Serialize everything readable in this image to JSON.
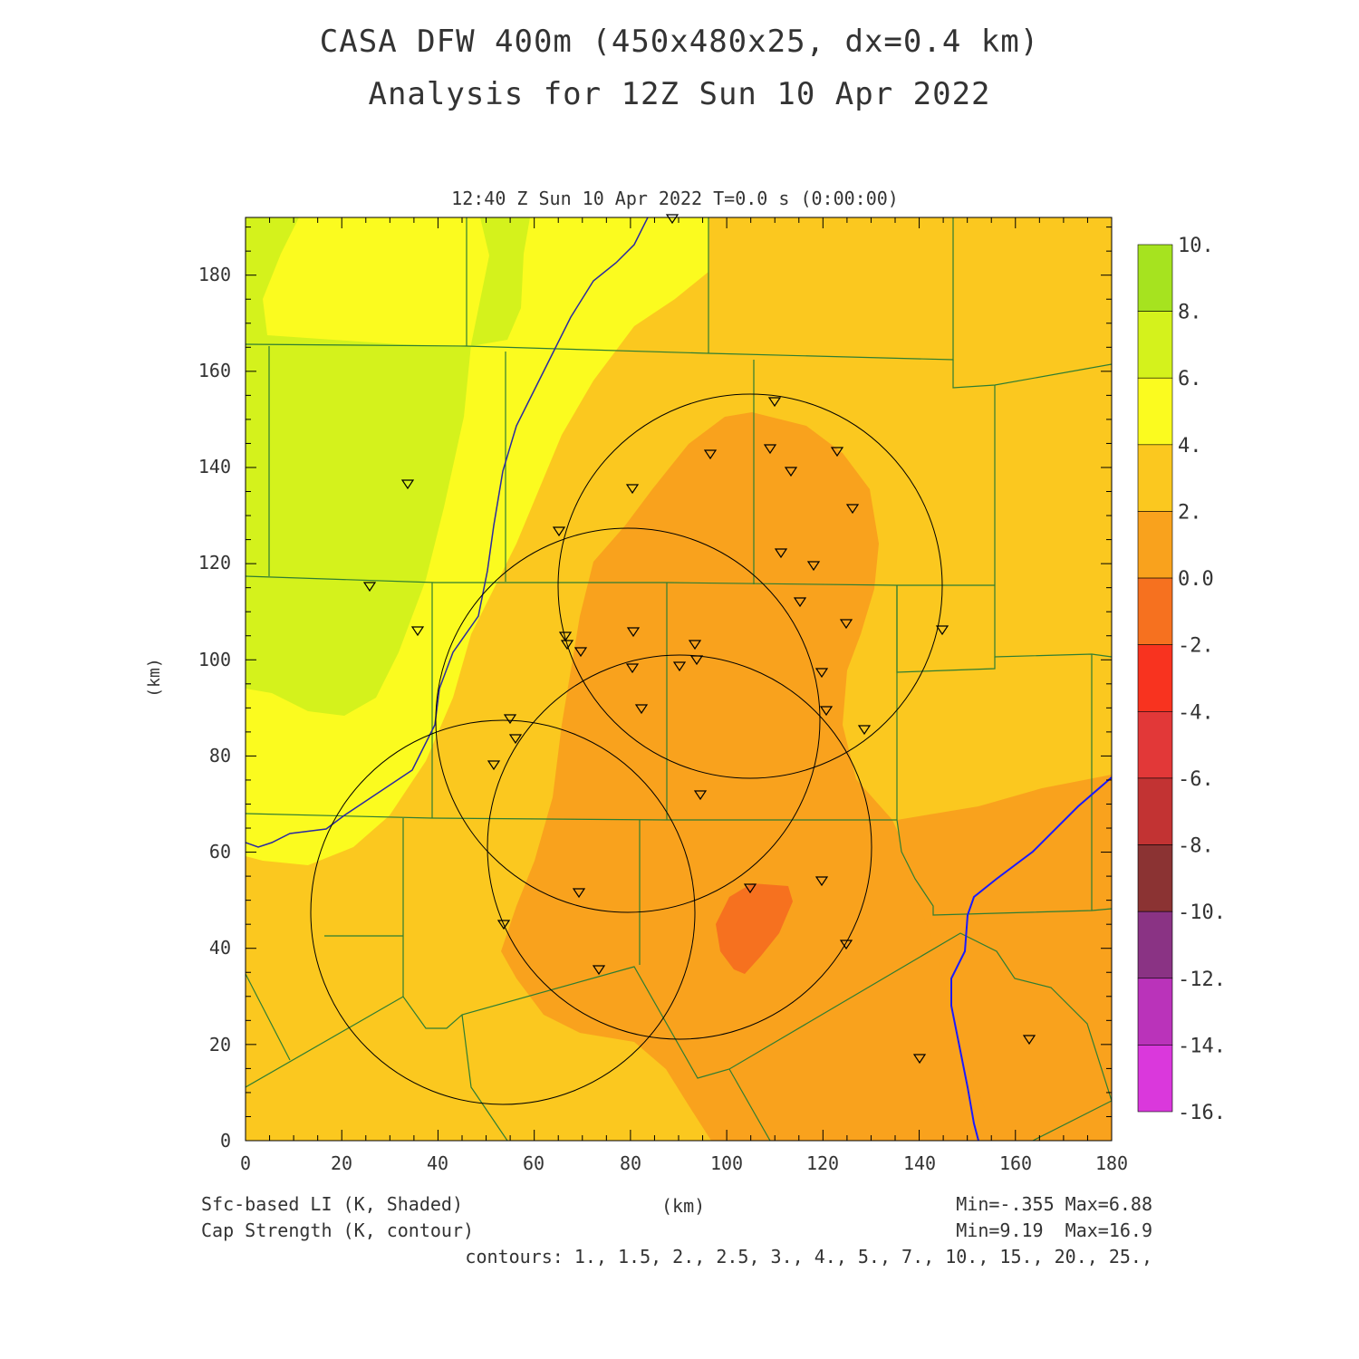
{
  "title_line1": "CASA DFW 400m (450x480x25, dx=0.4 km)",
  "title_line2": "Analysis for 12Z Sun 10 Apr 2022",
  "valid_time": "12:40 Z Sun 10 Apr 2022   T=0.0 s (0:00:00)",
  "axis_x_label": "(km)",
  "axis_y_label": "(km)",
  "x_ticks": [
    "0",
    "20",
    "40",
    "60",
    "80",
    "100",
    "120",
    "140",
    "160",
    "180"
  ],
  "y_ticks": [
    "0",
    "20",
    "40",
    "60",
    "80",
    "100",
    "120",
    "140",
    "160",
    "180"
  ],
  "field1_label": "Sfc-based LI (K, Shaded)",
  "field1_range": "Min=-.355 Max=6.88",
  "field2_label": "Cap Strength (K, contour)",
  "field2_range": "Min=9.19  Max=16.9",
  "contours_label": "contours: 1., 1.5, 2., 2.5, 3., 4., 5., 7., 10., 15., 20., 25.,",
  "colorbar": {
    "labels": [
      "10.",
      "8.",
      "6.",
      "4.",
      "2.",
      "0.0",
      "-2.",
      "-4.",
      "-6.",
      "-8.",
      "-10.",
      "-12.",
      "-14.",
      "-16."
    ],
    "colors": [
      "#a6e31f",
      "#d4f21c",
      "#fbfb1f",
      "#fbc81f",
      "#f9a21d",
      "#f6711f",
      "#f8331f",
      "#e23838",
      "#c23333",
      "#8b3333",
      "#8a3384",
      "#ba33ba",
      "#da38dc"
    ]
  },
  "colors": {
    "county_lines": "#2e7d32",
    "river": "#1a1aff",
    "radar_rings": "#000000",
    "stations": "#000000"
  }
}
